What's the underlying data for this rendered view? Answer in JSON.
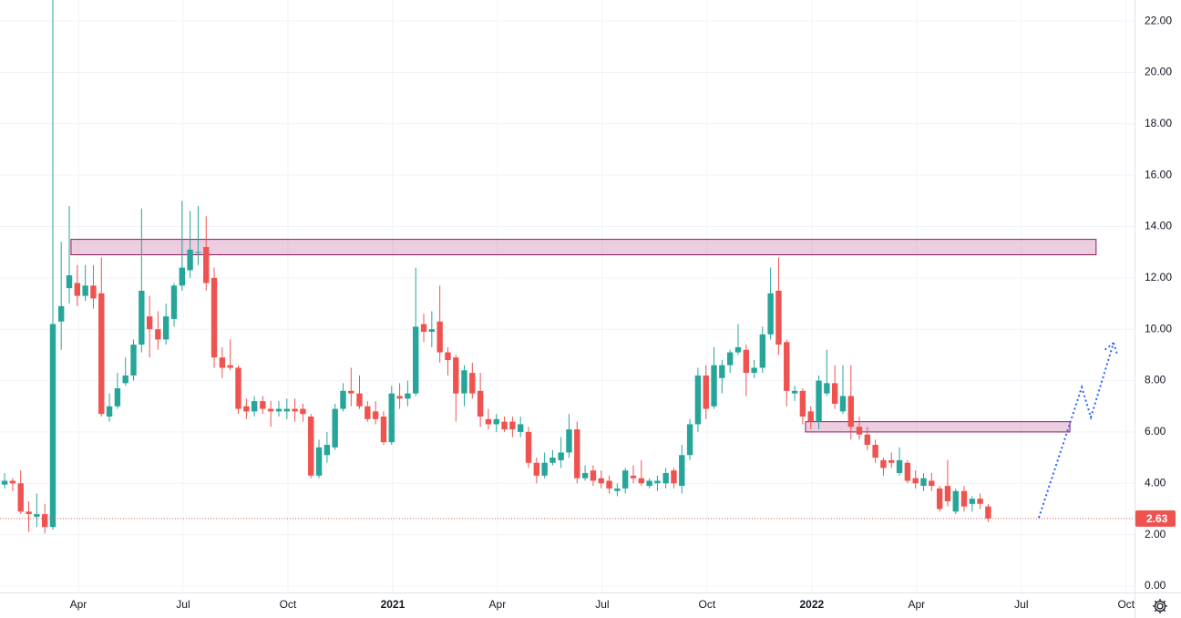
{
  "chart_data": {
    "type": "candlestick",
    "up_color": "#26a69a",
    "down_color": "#ef5350",
    "grid": true,
    "xlim": [
      0.757,
      33.24
    ],
    "ylim": [
      -0.25,
      22.82
    ],
    "xticks": [
      {
        "value": 3,
        "label": "Apr"
      },
      {
        "value": 6,
        "label": "Jul"
      },
      {
        "value": 9,
        "label": "Oct"
      },
      {
        "value": 12,
        "label": "2021"
      },
      {
        "value": 15,
        "label": "Apr"
      },
      {
        "value": 18,
        "label": "Jul"
      },
      {
        "value": 21,
        "label": "Oct"
      },
      {
        "value": 24,
        "label": "2022"
      },
      {
        "value": 27,
        "label": "Apr"
      },
      {
        "value": 30,
        "label": "Jul"
      },
      {
        "value": 33,
        "label": "Oct"
      }
    ],
    "yticks": [
      {
        "value": 0,
        "label": "0.00"
      },
      {
        "value": 2,
        "label": "2.00"
      },
      {
        "value": 4,
        "label": "4.00"
      },
      {
        "value": 6,
        "label": "6.00"
      },
      {
        "value": 8,
        "label": "8.00"
      },
      {
        "value": 10,
        "label": "10.00"
      },
      {
        "value": 12,
        "label": "12.00"
      },
      {
        "value": 14,
        "label": "14.00"
      },
      {
        "value": 16,
        "label": "16.00"
      },
      {
        "value": 18,
        "label": "18.00"
      },
      {
        "value": 20,
        "label": "20.00"
      },
      {
        "value": 22,
        "label": "22.00"
      }
    ],
    "x": [
      0.89,
      1.12,
      1.35,
      1.58,
      1.81,
      2.04,
      2.27,
      2.51,
      2.74,
      2.97,
      3.2,
      3.43,
      3.66,
      3.89,
      4.12,
      4.35,
      4.58,
      4.81,
      5.04,
      5.28,
      5.51,
      5.74,
      5.97,
      6.2,
      6.43,
      6.66,
      6.89,
      7.12,
      7.35,
      7.58,
      7.81,
      8.04,
      8.28,
      8.51,
      8.74,
      8.97,
      9.2,
      9.43,
      9.66,
      9.89,
      10.12,
      10.35,
      10.58,
      10.81,
      11.05,
      11.28,
      11.51,
      11.74,
      11.97,
      12.2,
      12.43,
      12.66,
      12.89,
      13.12,
      13.35,
      13.58,
      13.81,
      14.05,
      14.28,
      14.51,
      14.74,
      14.97,
      15.2,
      15.43,
      15.66,
      15.89,
      16.12,
      16.35,
      16.58,
      16.82,
      17.05,
      17.28,
      17.51,
      17.74,
      17.97,
      18.2,
      18.43,
      18.66,
      18.89,
      19.12,
      19.35,
      19.58,
      19.82,
      20.05,
      20.28,
      20.51,
      20.74,
      20.97,
      21.2,
      21.43,
      21.66,
      21.89,
      22.12,
      22.35,
      22.59,
      22.82,
      23.05,
      23.28,
      23.51,
      23.74,
      23.97,
      24.2,
      24.43,
      24.66,
      24.89,
      25.12,
      25.36,
      25.59,
      25.82,
      26.05,
      26.28,
      26.51,
      26.74,
      26.97,
      27.2,
      27.43,
      27.66,
      27.89,
      28.12,
      28.36,
      28.59,
      28.82,
      29.05
    ],
    "open": [
      3.95,
      4.1,
      4.0,
      2.9,
      2.7,
      2.8,
      2.3,
      10.3,
      11.6,
      11.8,
      11.3,
      11.7,
      11.4,
      6.6,
      7.0,
      7.9,
      8.2,
      9.4,
      10.5,
      10.0,
      9.6,
      10.4,
      11.7,
      12.3,
      13.0,
      13.2,
      12.0,
      8.9,
      8.6,
      8.5,
      7.0,
      6.8,
      7.2,
      6.9,
      6.8,
      6.8,
      6.9,
      6.9,
      6.6,
      4.3,
      5.1,
      5.4,
      6.9,
      7.6,
      7.5,
      7.0,
      6.8,
      6.6,
      5.6,
      7.4,
      7.3,
      7.5,
      10.2,
      9.9,
      10.3,
      9.1,
      8.9,
      7.5,
      8.3,
      7.6,
      6.5,
      6.3,
      6.4,
      6.4,
      6.0,
      6.0,
      4.8,
      4.3,
      4.8,
      4.9,
      5.2,
      6.1,
      4.2,
      4.5,
      4.2,
      4.1,
      3.7,
      3.8,
      4.3,
      4.2,
      3.9,
      4.0,
      4.0,
      4.5,
      3.9,
      5.1,
      6.3,
      8.2,
      7.0,
      8.1,
      8.6,
      9.1,
      9.2,
      8.3,
      8.5,
      9.8,
      11.5,
      9.5,
      7.5,
      7.6,
      6.8,
      6.4,
      7.5,
      7.9,
      6.8,
      7.4,
      6.2,
      5.9,
      5.5,
      4.9,
      4.9,
      4.4,
      4.8,
      4.2,
      3.9,
      4.1,
      3.8,
      3.9,
      2.9,
      3.7,
      3.2,
      3.4,
      3.1
    ],
    "high": [
      4.4,
      4.2,
      4.5,
      3.3,
      3.6,
      3.2,
      23.5,
      13.4,
      14.8,
      12.5,
      12.5,
      12.5,
      12.8,
      7.5,
      8.3,
      8.9,
      9.6,
      14.7,
      11.3,
      10.7,
      11.0,
      11.8,
      15.0,
      14.6,
      14.8,
      14.4,
      12.4,
      9.3,
      9.6,
      8.6,
      7.3,
      7.4,
      7.4,
      7.2,
      7.2,
      7.3,
      7.3,
      7.1,
      6.7,
      5.7,
      6.0,
      7.1,
      7.9,
      8.5,
      8.2,
      7.2,
      7.2,
      6.8,
      7.8,
      7.9,
      8.0,
      12.4,
      10.6,
      10.7,
      11.7,
      9.3,
      9.0,
      8.6,
      8.7,
      8.3,
      6.9,
      6.7,
      6.6,
      6.6,
      6.6,
      6.2,
      5.0,
      5.2,
      5.3,
      5.8,
      6.7,
      6.4,
      4.7,
      4.7,
      4.5,
      4.3,
      4.0,
      4.6,
      4.7,
      4.9,
      4.2,
      4.3,
      4.6,
      4.6,
      5.5,
      6.5,
      8.5,
      8.6,
      9.3,
      8.8,
      9.2,
      10.2,
      9.4,
      8.8,
      10.1,
      12.4,
      12.8,
      9.6,
      7.8,
      7.7,
      7.0,
      8.2,
      9.2,
      8.6,
      8.6,
      8.6,
      6.6,
      6.2,
      5.7,
      5.0,
      5.2,
      5.4,
      4.9,
      4.5,
      4.4,
      4.4,
      3.9,
      4.9,
      3.8,
      3.9,
      3.5,
      3.6,
      3.2
    ],
    "low": [
      3.8,
      3.7,
      2.8,
      2.1,
      2.3,
      2.05,
      2.2,
      9.2,
      11.0,
      10.9,
      11.1,
      10.8,
      6.6,
      6.4,
      6.9,
      7.8,
      8.0,
      9.1,
      8.9,
      9.2,
      9.4,
      10.1,
      11.5,
      12.0,
      12.5,
      11.5,
      8.5,
      8.1,
      8.4,
      6.7,
      6.5,
      6.6,
      6.7,
      6.2,
      6.6,
      6.5,
      6.4,
      6.4,
      4.2,
      4.2,
      4.8,
      5.3,
      6.8,
      7.0,
      6.9,
      6.4,
      6.3,
      5.5,
      5.5,
      6.9,
      7.0,
      7.4,
      9.5,
      9.3,
      8.7,
      8.2,
      6.4,
      7.0,
      7.3,
      6.2,
      6.1,
      6.0,
      6.0,
      5.8,
      5.8,
      4.6,
      4.0,
      4.2,
      4.7,
      4.6,
      5.0,
      4.0,
      4.1,
      3.9,
      3.8,
      3.6,
      3.5,
      3.6,
      4.0,
      3.9,
      3.8,
      3.7,
      3.8,
      3.8,
      3.6,
      4.9,
      6.0,
      6.5,
      6.9,
      7.5,
      8.3,
      9.0,
      7.4,
      8.1,
      8.3,
      9.6,
      9.0,
      7.0,
      7.2,
      6.3,
      6.1,
      6.1,
      7.4,
      6.9,
      6.7,
      5.7,
      5.7,
      5.3,
      4.8,
      4.3,
      4.6,
      4.3,
      4.0,
      3.8,
      3.7,
      3.7,
      2.9,
      3.1,
      2.8,
      2.9,
      2.9,
      3.0,
      2.5
    ],
    "close": [
      4.1,
      4.0,
      2.9,
      2.8,
      2.8,
      2.3,
      10.2,
      10.9,
      12.1,
      11.3,
      11.7,
      11.2,
      6.7,
      7.0,
      7.7,
      8.2,
      9.4,
      11.5,
      10.0,
      9.6,
      10.5,
      11.7,
      12.4,
      13.1,
      13.0,
      11.8,
      8.9,
      8.5,
      8.5,
      6.9,
      6.8,
      7.2,
      6.9,
      6.8,
      6.9,
      6.9,
      6.8,
      6.7,
      4.3,
      5.4,
      5.5,
      6.9,
      7.6,
      7.5,
      7.0,
      6.5,
      6.5,
      5.6,
      7.5,
      7.3,
      7.5,
      10.1,
      9.9,
      10.0,
      9.1,
      8.8,
      7.5,
      8.4,
      7.5,
      6.6,
      6.3,
      6.5,
      6.1,
      6.1,
      6.3,
      4.8,
      4.3,
      4.8,
      5.0,
      5.2,
      6.1,
      4.2,
      4.4,
      4.1,
      4.0,
      3.8,
      3.8,
      4.5,
      4.2,
      4.0,
      4.1,
      4.1,
      4.4,
      4.0,
      5.1,
      6.3,
      8.2,
      6.9,
      8.6,
      8.6,
      9.1,
      9.3,
      8.3,
      8.5,
      9.8,
      11.4,
      9.4,
      7.6,
      7.6,
      6.6,
      6.4,
      8.0,
      7.9,
      7.1,
      7.4,
      6.2,
      5.9,
      5.5,
      5.0,
      4.6,
      4.8,
      4.9,
      4.1,
      4.0,
      4.2,
      3.9,
      3.0,
      3.3,
      3.7,
      3.1,
      3.4,
      3.2,
      2.63
    ],
    "last_price": 2.63,
    "zones": [
      {
        "x": [
          2.79,
          32.14
        ],
        "y": [
          12.9,
          13.5
        ]
      },
      {
        "x": [
          23.82,
          31.39
        ],
        "y": [
          6.0,
          6.4
        ]
      }
    ],
    "projection": {
      "x": [
        30.5,
        31.73,
        31.99,
        32.64
      ],
      "y": [
        2.66,
        7.74,
        6.57,
        9.47
      ]
    }
  }
}
